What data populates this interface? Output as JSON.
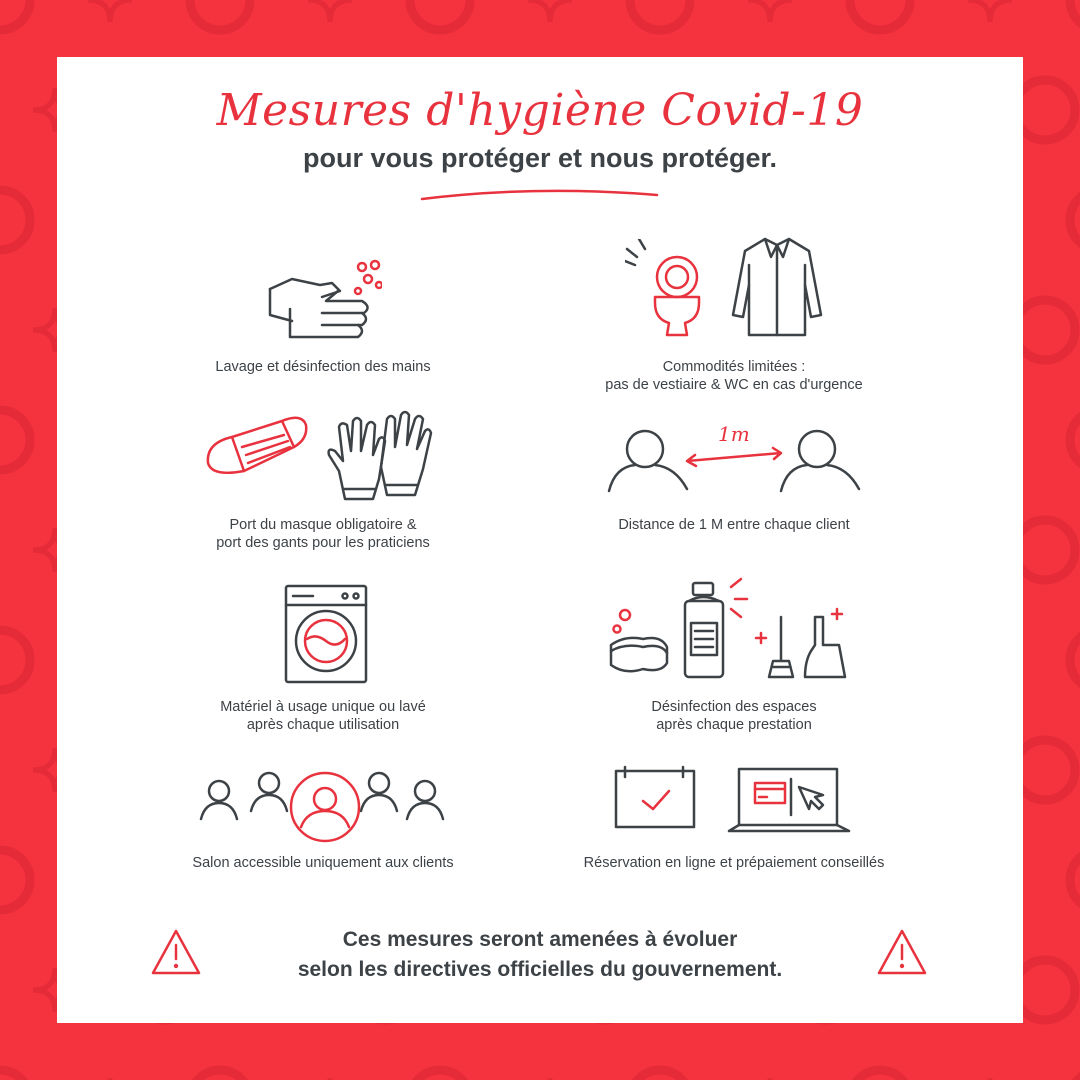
{
  "header": {
    "title": "Mesures d'hygiène Covid-19",
    "subtitle": "pour vous protéger et nous protéger."
  },
  "measures": [
    {
      "label": "Lavage et désinfection des mains"
    },
    {
      "label_line1": "Commodités limitées :",
      "label_line2": "pas de vestiaire & WC en cas d'urgence"
    },
    {
      "label_line1": "Port du masque obligatoire &",
      "label_line2": "port des gants pour les praticiens"
    },
    {
      "label": "Distance de 1 M entre chaque client",
      "distance_text": "1m"
    },
    {
      "label_line1": "Matériel à usage unique ou lavé",
      "label_line2": "après chaque utilisation"
    },
    {
      "label_line1": "Désinfection des espaces",
      "label_line2": "après chaque prestation"
    },
    {
      "label": "Salon accessible uniquement aux clients"
    },
    {
      "label": "Réservation en ligne et prépaiement conseillés"
    }
  ],
  "footer": {
    "line1": "Ces mesures seront amenées à évoluer",
    "line2": "selon les directives officielles du gouvernement."
  },
  "colors": {
    "accent": "#e8333f",
    "background": "#f5333f",
    "text": "#3d4247"
  }
}
